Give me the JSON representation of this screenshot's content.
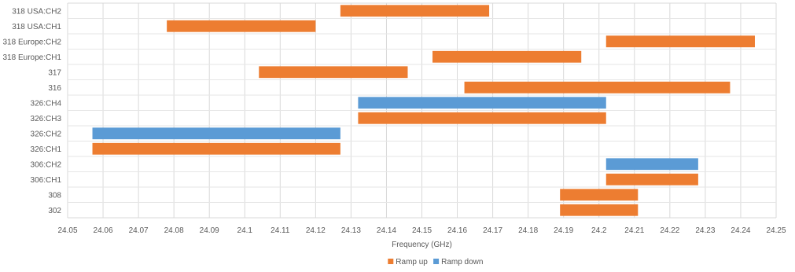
{
  "chart_data": {
    "type": "bar",
    "orientation": "horizontal-floating",
    "title": "",
    "xlabel": "Frequency (GHz)",
    "ylabel": "",
    "xlim": [
      24.05,
      24.25
    ],
    "xticks": [
      "24.05",
      "24.06",
      "24.07",
      "24.08",
      "24.09",
      "24.1",
      "24.11",
      "24.12",
      "24.13",
      "24.14",
      "24.15",
      "24.16",
      "24.17",
      "24.18",
      "24.19",
      "24.2",
      "24.21",
      "24.22",
      "24.23",
      "24.24",
      "24.25"
    ],
    "grid": true,
    "legend_position": "bottom",
    "categories": [
      "318 USA:CH2",
      "318 USA:CH1",
      "318 Europe:CH2",
      "318 Europe:CH1",
      "317",
      "316",
      "326:CH4",
      "326:CH3",
      "326:CH2",
      "326:CH1",
      "306:CH2",
      "306:CH1",
      "308",
      "302"
    ],
    "series": [
      {
        "name": "Ramp up",
        "color": "#ED7D31"
      },
      {
        "name": "Ramp down",
        "color": "#5B9BD5"
      }
    ],
    "bars": [
      {
        "category": "318 USA:CH2",
        "series": "Ramp up",
        "start": 24.127,
        "end": 24.169
      },
      {
        "category": "318 USA:CH1",
        "series": "Ramp up",
        "start": 24.078,
        "end": 24.12
      },
      {
        "category": "318 Europe:CH2",
        "series": "Ramp up",
        "start": 24.202,
        "end": 24.244
      },
      {
        "category": "318 Europe:CH1",
        "series": "Ramp up",
        "start": 24.153,
        "end": 24.195
      },
      {
        "category": "317",
        "series": "Ramp up",
        "start": 24.104,
        "end": 24.146
      },
      {
        "category": "316",
        "series": "Ramp up",
        "start": 24.162,
        "end": 24.237
      },
      {
        "category": "326:CH4",
        "series": "Ramp down",
        "start": 24.132,
        "end": 24.202
      },
      {
        "category": "326:CH3",
        "series": "Ramp up",
        "start": 24.132,
        "end": 24.202
      },
      {
        "category": "326:CH2",
        "series": "Ramp down",
        "start": 24.057,
        "end": 24.127
      },
      {
        "category": "326:CH1",
        "series": "Ramp up",
        "start": 24.057,
        "end": 24.127
      },
      {
        "category": "306:CH2",
        "series": "Ramp down",
        "start": 24.202,
        "end": 24.228
      },
      {
        "category": "306:CH1",
        "series": "Ramp up",
        "start": 24.202,
        "end": 24.228
      },
      {
        "category": "308",
        "series": "Ramp up",
        "start": 24.189,
        "end": 24.211
      },
      {
        "category": "302",
        "series": "Ramp up",
        "start": 24.189,
        "end": 24.211
      }
    ]
  }
}
